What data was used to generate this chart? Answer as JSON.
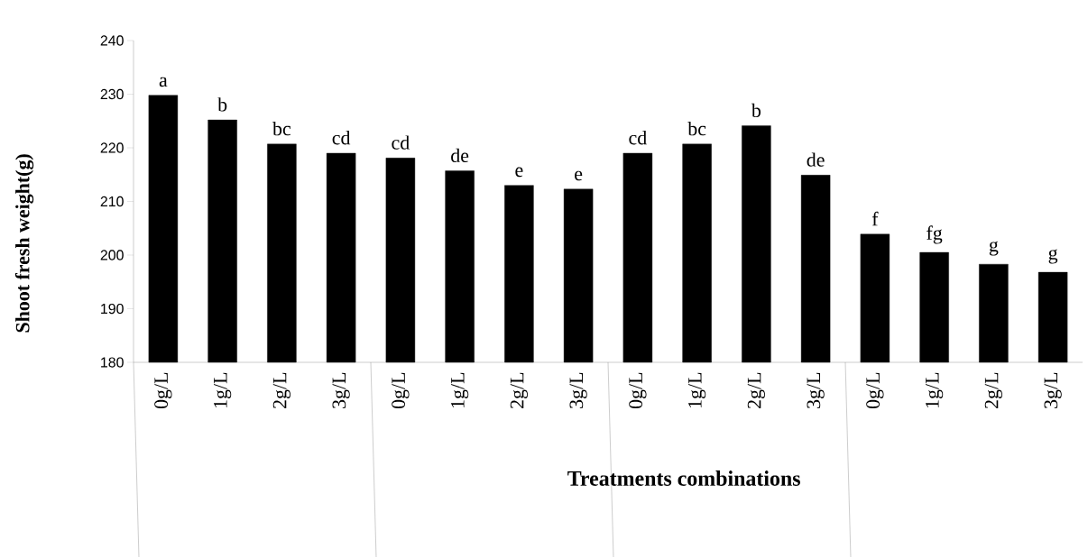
{
  "chart_data": {
    "type": "bar",
    "xlabel": "Treatments combinations",
    "ylabel": "Shoot fresh weight(g)",
    "categories": [
      "0g/L",
      "1g/L",
      "2g/L",
      "3g/L",
      "0g/L",
      "1g/L",
      "2g/L",
      "3g/L",
      "0g/L",
      "1g/L",
      "2g/L",
      "3g/L",
      "0g/L",
      "1g/L",
      "2g/L",
      "3g/L"
    ],
    "values": [
      229.8,
      225.2,
      220.7,
      219.0,
      218.1,
      215.7,
      213.0,
      212.3,
      219.0,
      220.7,
      224.1,
      214.9,
      203.9,
      200.5,
      198.3,
      196.8
    ],
    "value_labels": [
      "a",
      "b",
      "bc",
      "cd",
      "cd",
      "de",
      "e",
      "e",
      "cd",
      "bc",
      "b",
      "de",
      "f",
      "fg",
      "g",
      "g"
    ],
    "color": "#000000",
    "ylim": [
      180,
      240
    ],
    "yticks": [
      180,
      190,
      200,
      210,
      220,
      230,
      240
    ],
    "grid": false
  }
}
